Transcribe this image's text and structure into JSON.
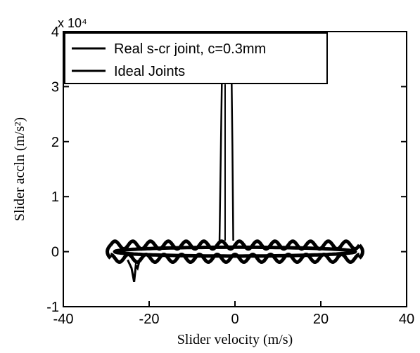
{
  "chart_data": {
    "type": "line",
    "title": "",
    "xlabel": "Slider velocity (m/s)",
    "ylabel": "Slider accln (m/s²)",
    "xlim": [
      -40,
      40
    ],
    "ylim": [
      -1,
      4
    ],
    "y_multiplier": "x 10⁴",
    "x_ticks": [
      {
        "value": -40,
        "label": "-40"
      },
      {
        "value": -20,
        "label": "-20"
      },
      {
        "value": 0,
        "label": "0"
      },
      {
        "value": 20,
        "label": "20"
      },
      {
        "value": 40,
        "label": "40"
      }
    ],
    "y_ticks": [
      {
        "value": -1,
        "label": "-1"
      },
      {
        "value": 0,
        "label": "0"
      },
      {
        "value": 1,
        "label": "1"
      },
      {
        "value": 2,
        "label": "2"
      },
      {
        "value": 3,
        "label": "3"
      },
      {
        "value": 4,
        "label": "4"
      }
    ],
    "grid": false,
    "legend_position": "top-left",
    "series": [
      {
        "name": "Real s-cr joint, c=0.3mm",
        "color": "#000000",
        "style": "oscillating loop with central spike",
        "spike": {
          "x_left": -3.2,
          "x_right": -0.6,
          "y_peak": 3.9,
          "y_base": 0.2
        },
        "negative_dip": {
          "x": -23.5,
          "y": -0.55
        },
        "loop": {
          "x_min": -29,
          "x_max": 29,
          "y_upper": 0.12,
          "y_lower": -0.12,
          "wiggle_amplitude": 0.07
        }
      },
      {
        "name": "Ideal Joints",
        "color": "#000000",
        "style": "closed ellipse",
        "ellipse": {
          "x_min": -28,
          "x_max": 28,
          "y_amplitude": 0.08
        }
      }
    ]
  }
}
